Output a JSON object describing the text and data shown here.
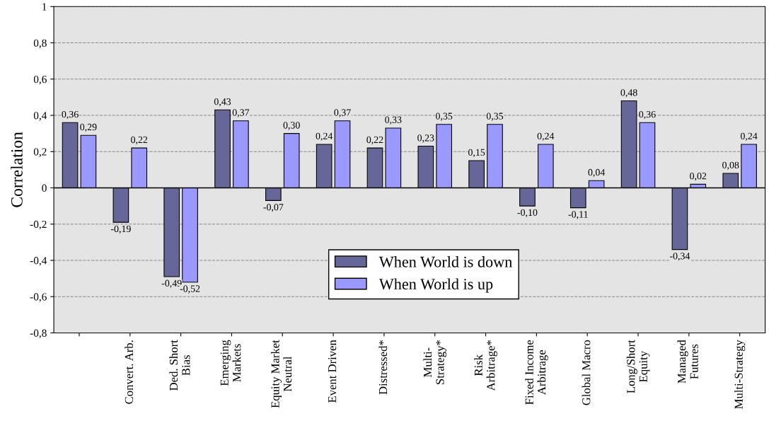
{
  "chart_data": {
    "type": "bar",
    "ylabel": "Correlation",
    "categories": [
      null,
      "Convert. Arb.",
      "Ded. Short\nBias",
      "Emerging\nMarkets",
      "Equity Market\nNeutral",
      "Event Driven",
      "Distressed*",
      "Multi-\nStrategy*",
      "Risk\nArbitrage*",
      "Fixed Income\nArbitrage",
      "Global Macro",
      "Long/Short\nEquity",
      "Managed\nFutures",
      "Multi-Strategy"
    ],
    "series": [
      {
        "name": "When World is down",
        "color": "#666699",
        "values": [
          0.36,
          -0.19,
          -0.49,
          0.43,
          -0.07,
          0.24,
          0.22,
          0.23,
          0.15,
          -0.1,
          -0.11,
          0.48,
          -0.34,
          0.08
        ],
        "value_labels": [
          "0,36",
          "-0,19",
          "-0,49",
          "0,43",
          "-0,07",
          "0,24",
          "0,22",
          "0,23",
          "0,15",
          "-0,10",
          "-0,11",
          "0,48",
          "-0,34",
          "0,08"
        ]
      },
      {
        "name": "When World is up",
        "color": "#9999ff",
        "values": [
          0.29,
          0.22,
          -0.52,
          0.37,
          0.3,
          0.37,
          0.33,
          0.35,
          0.35,
          0.24,
          0.04,
          0.36,
          0.02,
          0.24
        ],
        "value_labels": [
          "0,29",
          "0,22",
          "-0,52",
          "0,37",
          "0,30",
          "0,37",
          "0,33",
          "0,35",
          "0,35",
          "0,24",
          "0,04",
          "0,36",
          "0,02",
          "0,24"
        ]
      }
    ],
    "ylim": [
      -0.8,
      1
    ],
    "yticks": [
      {
        "value": -0.8,
        "label": "-0,8"
      },
      {
        "value": -0.6,
        "label": "-0,6"
      },
      {
        "value": -0.4,
        "label": "-0,4"
      },
      {
        "value": -0.2,
        "label": "-0,2"
      },
      0,
      {
        "value": 0.2,
        "label": "0,2"
      },
      {
        "value": 0.4,
        "label": "0,4"
      },
      {
        "value": 0.6,
        "label": "0,6"
      },
      {
        "value": 0.8,
        "label": "0,8"
      },
      1
    ],
    "grid": "y",
    "legend": "bottom"
  }
}
